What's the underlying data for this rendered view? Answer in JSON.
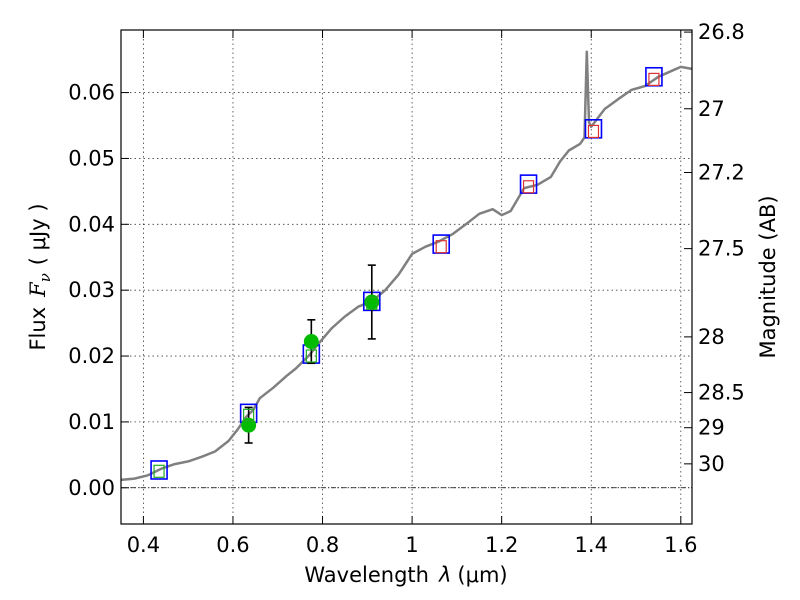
{
  "chart_data": {
    "type": "scatter",
    "xlabel": "Wavelength",
    "xlabel_symbol": "λ",
    "xlabel_unit": "(μm)",
    "ylabel": "Flux",
    "ylabel_symbol": "F",
    "ylabel_symbol_sub": "ν",
    "ylabel_unit": "( μJy )",
    "y2label": "Magnitude (AB)",
    "xlim": [
      0.35,
      1.625
    ],
    "ylim": [
      -0.0055,
      0.0695
    ],
    "grid": true,
    "x_ticks": [
      {
        "value": 0.4,
        "label": "0.4"
      },
      {
        "value": 0.6,
        "label": "0.6"
      },
      {
        "value": 0.8,
        "label": "0.8"
      },
      {
        "value": 1.0,
        "label": "1"
      },
      {
        "value": 1.2,
        "label": "1.2"
      },
      {
        "value": 1.4,
        "label": "1.4"
      },
      {
        "value": 1.6,
        "label": "1.6"
      }
    ],
    "y_ticks": [
      {
        "value": 0.0,
        "label": "0.00"
      },
      {
        "value": 0.01,
        "label": "0.01"
      },
      {
        "value": 0.02,
        "label": "0.02"
      },
      {
        "value": 0.03,
        "label": "0.03"
      },
      {
        "value": 0.04,
        "label": "0.04"
      },
      {
        "value": 0.05,
        "label": "0.05"
      },
      {
        "value": 0.06,
        "label": "0.06"
      }
    ],
    "y2_ticks": [
      {
        "mag": 26.8,
        "label": "26.8"
      },
      {
        "mag": 27.0,
        "label": "27"
      },
      {
        "mag": 27.2,
        "label": "27.2"
      },
      {
        "mag": 27.5,
        "label": "27.5"
      },
      {
        "mag": 28.0,
        "label": "28"
      },
      {
        "mag": 28.5,
        "label": "28.5"
      },
      {
        "mag": 29.0,
        "label": "29"
      },
      {
        "mag": 30.0,
        "label": "30"
      }
    ],
    "series": [
      {
        "kind": "line",
        "color": "#808080",
        "points": [
          [
            0.35,
            0.0012
          ],
          [
            0.38,
            0.0014
          ],
          [
            0.41,
            0.0019
          ],
          [
            0.44,
            0.0029
          ],
          [
            0.47,
            0.0036
          ],
          [
            0.5,
            0.004
          ],
          [
            0.53,
            0.0047
          ],
          [
            0.56,
            0.0055
          ],
          [
            0.59,
            0.0071
          ],
          [
            0.61,
            0.0088
          ],
          [
            0.63,
            0.0108
          ],
          [
            0.645,
            0.0118
          ],
          [
            0.66,
            0.0136
          ],
          [
            0.69,
            0.0152
          ],
          [
            0.72,
            0.017
          ],
          [
            0.74,
            0.0181
          ],
          [
            0.77,
            0.0201
          ],
          [
            0.79,
            0.0218
          ],
          [
            0.82,
            0.0242
          ],
          [
            0.85,
            0.026
          ],
          [
            0.88,
            0.0275
          ],
          [
            0.91,
            0.0283
          ],
          [
            0.94,
            0.03
          ],
          [
            0.97,
            0.0324
          ],
          [
            1.0,
            0.0355
          ],
          [
            1.03,
            0.0366
          ],
          [
            1.06,
            0.0374
          ],
          [
            1.09,
            0.0385
          ],
          [
            1.12,
            0.04
          ],
          [
            1.15,
            0.0416
          ],
          [
            1.18,
            0.0423
          ],
          [
            1.2,
            0.0414
          ],
          [
            1.22,
            0.042
          ],
          [
            1.25,
            0.0455
          ],
          [
            1.28,
            0.046
          ],
          [
            1.31,
            0.0472
          ],
          [
            1.33,
            0.0495
          ],
          [
            1.35,
            0.0512
          ],
          [
            1.375,
            0.0522
          ],
          [
            1.385,
            0.0532
          ],
          [
            1.39,
            0.0662
          ],
          [
            1.395,
            0.0555
          ],
          [
            1.4,
            0.0548
          ],
          [
            1.43,
            0.0575
          ],
          [
            1.46,
            0.059
          ],
          [
            1.49,
            0.0604
          ],
          [
            1.52,
            0.061
          ],
          [
            1.55,
            0.0624
          ],
          [
            1.58,
            0.0633
          ],
          [
            1.6,
            0.0639
          ],
          [
            1.625,
            0.0636
          ]
        ]
      },
      {
        "kind": "model_photometry",
        "marker": "open-square",
        "color": "#0000ff",
        "points": [
          [
            0.435,
            0.0027
          ],
          [
            0.635,
            0.0113
          ],
          [
            0.775,
            0.0203
          ],
          [
            0.91,
            0.0283
          ],
          [
            1.065,
            0.037
          ],
          [
            1.26,
            0.0461
          ],
          [
            1.405,
            0.0545
          ],
          [
            1.54,
            0.0624
          ]
        ]
      },
      {
        "kind": "observed",
        "marker": "filled-circle",
        "color": "#00bb00",
        "points": [
          [
            0.635,
            0.0095,
            0.0027
          ],
          [
            0.775,
            0.0222,
            0.0033
          ],
          [
            0.91,
            0.0282,
            0.0056
          ]
        ]
      },
      {
        "kind": "upper_inner",
        "marker": "open-square-small",
        "colors": [
          "#22aa22",
          "#22aa22",
          "#22aa22",
          "#22aa22",
          "#dd3333",
          "#dd3333",
          "#dd3333",
          "#dd3333"
        ],
        "points": [
          [
            0.435,
            0.0025
          ],
          [
            0.635,
            0.011
          ],
          [
            0.775,
            0.02
          ],
          [
            0.91,
            0.028
          ],
          [
            1.065,
            0.0366
          ],
          [
            1.26,
            0.0457
          ],
          [
            1.405,
            0.0541
          ],
          [
            1.54,
            0.062
          ]
        ]
      }
    ]
  }
}
